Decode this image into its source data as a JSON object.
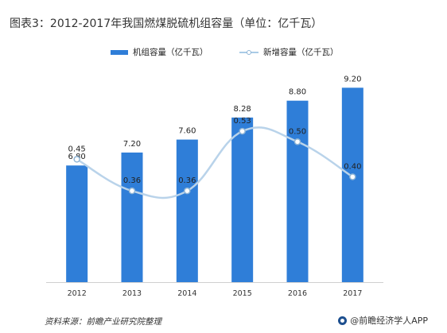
{
  "page": {
    "title": "图表3：2012-2017年我国燃煤脱硫机组容量（单位：亿千瓦）",
    "source": "资料来源：前瞻产业研究院整理",
    "brand": "@前瞻经济学人APP"
  },
  "colors": {
    "bar": "#2f7ed8",
    "line": "#b9d3ea",
    "marker": "#8fb5d6"
  },
  "chart_data": {
    "type": "bar+line",
    "categories": [
      "2012",
      "2013",
      "2014",
      "2015",
      "2016",
      "2017"
    ],
    "series": [
      {
        "name": "机组容量（亿千瓦）",
        "type": "bar",
        "axis": "left",
        "values": [
          6.8,
          7.2,
          7.6,
          8.28,
          8.8,
          9.2
        ],
        "labels": [
          "6.80",
          "7.20",
          "7.60",
          "8.28",
          "8.80",
          "9.20"
        ]
      },
      {
        "name": "新增容量（亿千瓦）",
        "type": "line",
        "smooth": true,
        "axis": "right",
        "values": [
          0.45,
          0.36,
          0.36,
          0.53,
          0.5,
          0.4
        ],
        "labels": [
          "0.45",
          "0.36",
          "0.36",
          "0.53",
          "0.50",
          "0.40"
        ]
      }
    ],
    "ylim": [
      3.2,
      9.7
    ],
    "y2lim": [
      0.1,
      0.7
    ],
    "grid": false,
    "legend": "top"
  }
}
